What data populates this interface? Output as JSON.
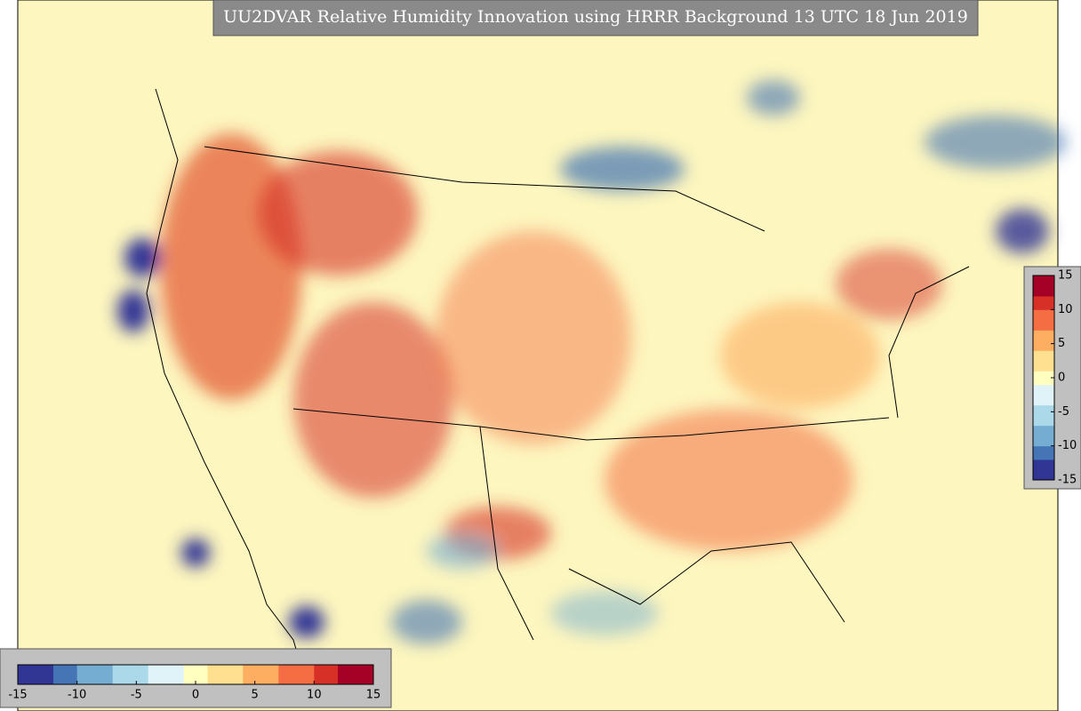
{
  "title": "UU2DVAR Relative Humidity Innovation using HRRR Background 13 UTC 18 Jun 2019",
  "colorbar_bottom": {
    "lim": [
      -15,
      15
    ],
    "ticks": [
      -15,
      -10,
      -5,
      0,
      5,
      10,
      15
    ]
  },
  "colorbar_right": {
    "lim": [
      -15,
      15
    ],
    "ticks": [
      15,
      10,
      5,
      0,
      -5,
      -10,
      -15
    ]
  },
  "colormap": [
    "#313695",
    "#4575b4",
    "#74add1",
    "#abd9e9",
    "#e0f3f8",
    "#ffffbf",
    "#fee090",
    "#fdae61",
    "#f46d43",
    "#d73027",
    "#a50026"
  ]
}
